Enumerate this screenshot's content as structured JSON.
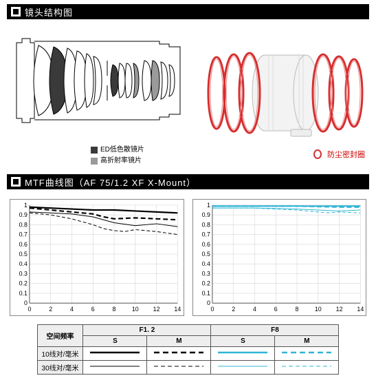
{
  "headers": {
    "structure": "镜头结构图",
    "mtf": "MTF曲线图（AF 75/1.2 XF  X-Mount）"
  },
  "element_legend": {
    "ed": "ED低色散镜片",
    "hr": "高折射率镜片"
  },
  "lens3d_legend": "防尘密封圈",
  "colors": {
    "seal_ring": "#d62f2f",
    "ed_fill": "#3a3a3a",
    "hr_fill": "#9a9a9a",
    "outline": "#000000",
    "mtf_black": "#000000",
    "mtf_cyan": "#2fb6d6",
    "grid": "#cccccc",
    "axis": "#555555"
  },
  "mtf_axis": {
    "xmin": 0,
    "xmax": 14,
    "xstep": 2,
    "ymin": 0,
    "ymax": 1,
    "ytick": [
      0,
      0.1,
      0.2,
      0.3,
      0.4,
      0.5,
      0.6,
      0.7,
      0.8,
      0.9,
      1
    ]
  },
  "mtf_left": {
    "color": "#000000",
    "s10": [
      [
        0,
        0.98
      ],
      [
        2,
        0.97
      ],
      [
        4,
        0.96
      ],
      [
        6,
        0.95
      ],
      [
        8,
        0.95
      ],
      [
        10,
        0.94
      ],
      [
        12,
        0.93
      ],
      [
        14,
        0.92
      ]
    ],
    "m10": [
      [
        0,
        0.97
      ],
      [
        2,
        0.95
      ],
      [
        4,
        0.93
      ],
      [
        6,
        0.91
      ],
      [
        7,
        0.88
      ],
      [
        8,
        0.86
      ],
      [
        10,
        0.87
      ],
      [
        12,
        0.86
      ],
      [
        14,
        0.85
      ]
    ],
    "s30": [
      [
        0,
        0.93
      ],
      [
        2,
        0.92
      ],
      [
        4,
        0.91
      ],
      [
        6,
        0.88
      ],
      [
        8,
        0.82
      ],
      [
        10,
        0.79
      ],
      [
        12,
        0.81
      ],
      [
        14,
        0.78
      ]
    ],
    "m30": [
      [
        0,
        0.92
      ],
      [
        2,
        0.9
      ],
      [
        4,
        0.86
      ],
      [
        6,
        0.8
      ],
      [
        7,
        0.76
      ],
      [
        8,
        0.74
      ],
      [
        9,
        0.73
      ],
      [
        10,
        0.75
      ],
      [
        12,
        0.73
      ],
      [
        14,
        0.7
      ]
    ]
  },
  "mtf_right": {
    "color": "#2fb6d6",
    "s10": [
      [
        0,
        0.99
      ],
      [
        4,
        0.99
      ],
      [
        8,
        0.99
      ],
      [
        12,
        0.99
      ],
      [
        14,
        0.99
      ]
    ],
    "m10": [
      [
        0,
        0.99
      ],
      [
        4,
        0.99
      ],
      [
        8,
        0.99
      ],
      [
        12,
        0.98
      ],
      [
        14,
        0.98
      ]
    ],
    "s30": [
      [
        0,
        0.97
      ],
      [
        4,
        0.97
      ],
      [
        8,
        0.96
      ],
      [
        10,
        0.95
      ],
      [
        12,
        0.94
      ],
      [
        14,
        0.95
      ]
    ],
    "m30": [
      [
        0,
        0.97
      ],
      [
        4,
        0.97
      ],
      [
        8,
        0.95
      ],
      [
        10,
        0.93
      ],
      [
        11,
        0.92
      ],
      [
        12,
        0.93
      ],
      [
        14,
        0.92
      ]
    ]
  },
  "mtf_table": {
    "rowLabel": "空间频率",
    "aperture1": "F1. 2",
    "aperture2": "F8",
    "colS": "S",
    "colM": "M",
    "row10": "10线对/毫米",
    "row30": "30线对/毫米"
  }
}
